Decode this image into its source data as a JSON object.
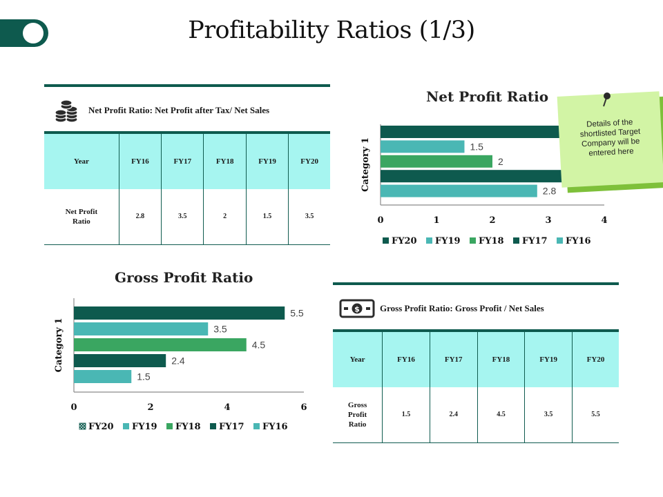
{
  "page": {
    "title": "Profitability Ratios (1/3)"
  },
  "net_profit_table": {
    "header": "Net Profit Ratio: Net Profit after Tax/ Net Sales",
    "icon": "coins-stack-icon",
    "columns": [
      "Year",
      "FY16",
      "FY17",
      "FY18",
      "FY19",
      "FY20"
    ],
    "row_label_lines": [
      "Net Profit",
      "Ratio"
    ],
    "values": [
      "2.8",
      "3.5",
      "2",
      "1.5",
      "3.5"
    ]
  },
  "gross_profit_table": {
    "header": "Gross Profit Ratio: Gross Profit / Net Sales",
    "icon": "money-bill-icon",
    "columns": [
      "Year",
      "FY16",
      "FY17",
      "FY18",
      "FY19",
      "FY20"
    ],
    "row_label_lines": [
      "Gross",
      "Profit",
      "Ratio"
    ],
    "values": [
      "1.5",
      "2.4",
      "4.5",
      "3.5",
      "5.5"
    ]
  },
  "sticky_note": {
    "lines": [
      "Details of the",
      "shortlisted Target",
      "Company will be",
      "entered here"
    ]
  },
  "colors": {
    "dark_green": "#0e5a4e",
    "teal": "#4ab7b4",
    "green": "#3aa661",
    "table_header_bg": "#a6f5f0",
    "sticky_bg": "#d2f4a5"
  },
  "chart_data": [
    {
      "id": "net",
      "type": "bar",
      "orientation": "horizontal",
      "title": "Net Profit Ratio",
      "category": "Category 1",
      "xlim": [
        0,
        4
      ],
      "ticks": [
        "0",
        "1",
        "2",
        "3",
        "4"
      ],
      "series": [
        {
          "name": "FY20",
          "value": 3.5,
          "label": "",
          "color": "#0e5a4e",
          "legend_marker": "solid"
        },
        {
          "name": "FY19",
          "value": 1.5,
          "label": "1.5",
          "color": "#4ab7b4",
          "legend_marker": "solid"
        },
        {
          "name": "FY18",
          "value": 2,
          "label": "2",
          "color": "#3aa661",
          "legend_marker": "solid"
        },
        {
          "name": "FY17",
          "value": 3.5,
          "label": "",
          "color": "#0e5a4e",
          "legend_marker": "solid"
        },
        {
          "name": "FY16",
          "value": 2.8,
          "label": "2.8",
          "color": "#4ab7b4",
          "legend_marker": "solid"
        }
      ]
    },
    {
      "id": "gross",
      "type": "bar",
      "orientation": "horizontal",
      "title": "Gross Profit Ratio",
      "category": "Category 1",
      "xlim": [
        0,
        6
      ],
      "ticks": [
        "0",
        "2",
        "4",
        "6"
      ],
      "series": [
        {
          "name": "FY20",
          "value": 5.5,
          "label": "5.5",
          "color": "#0e5a4e",
          "legend_marker": "pattern"
        },
        {
          "name": "FY19",
          "value": 3.5,
          "label": "3.5",
          "color": "#4ab7b4",
          "legend_marker": "solid"
        },
        {
          "name": "FY18",
          "value": 4.5,
          "label": "4.5",
          "color": "#3aa661",
          "legend_marker": "solid"
        },
        {
          "name": "FY17",
          "value": 2.4,
          "label": "2.4",
          "color": "#0e5a4e",
          "legend_marker": "solid"
        },
        {
          "name": "FY16",
          "value": 1.5,
          "label": "1.5",
          "color": "#4ab7b4",
          "legend_marker": "solid"
        }
      ]
    }
  ]
}
